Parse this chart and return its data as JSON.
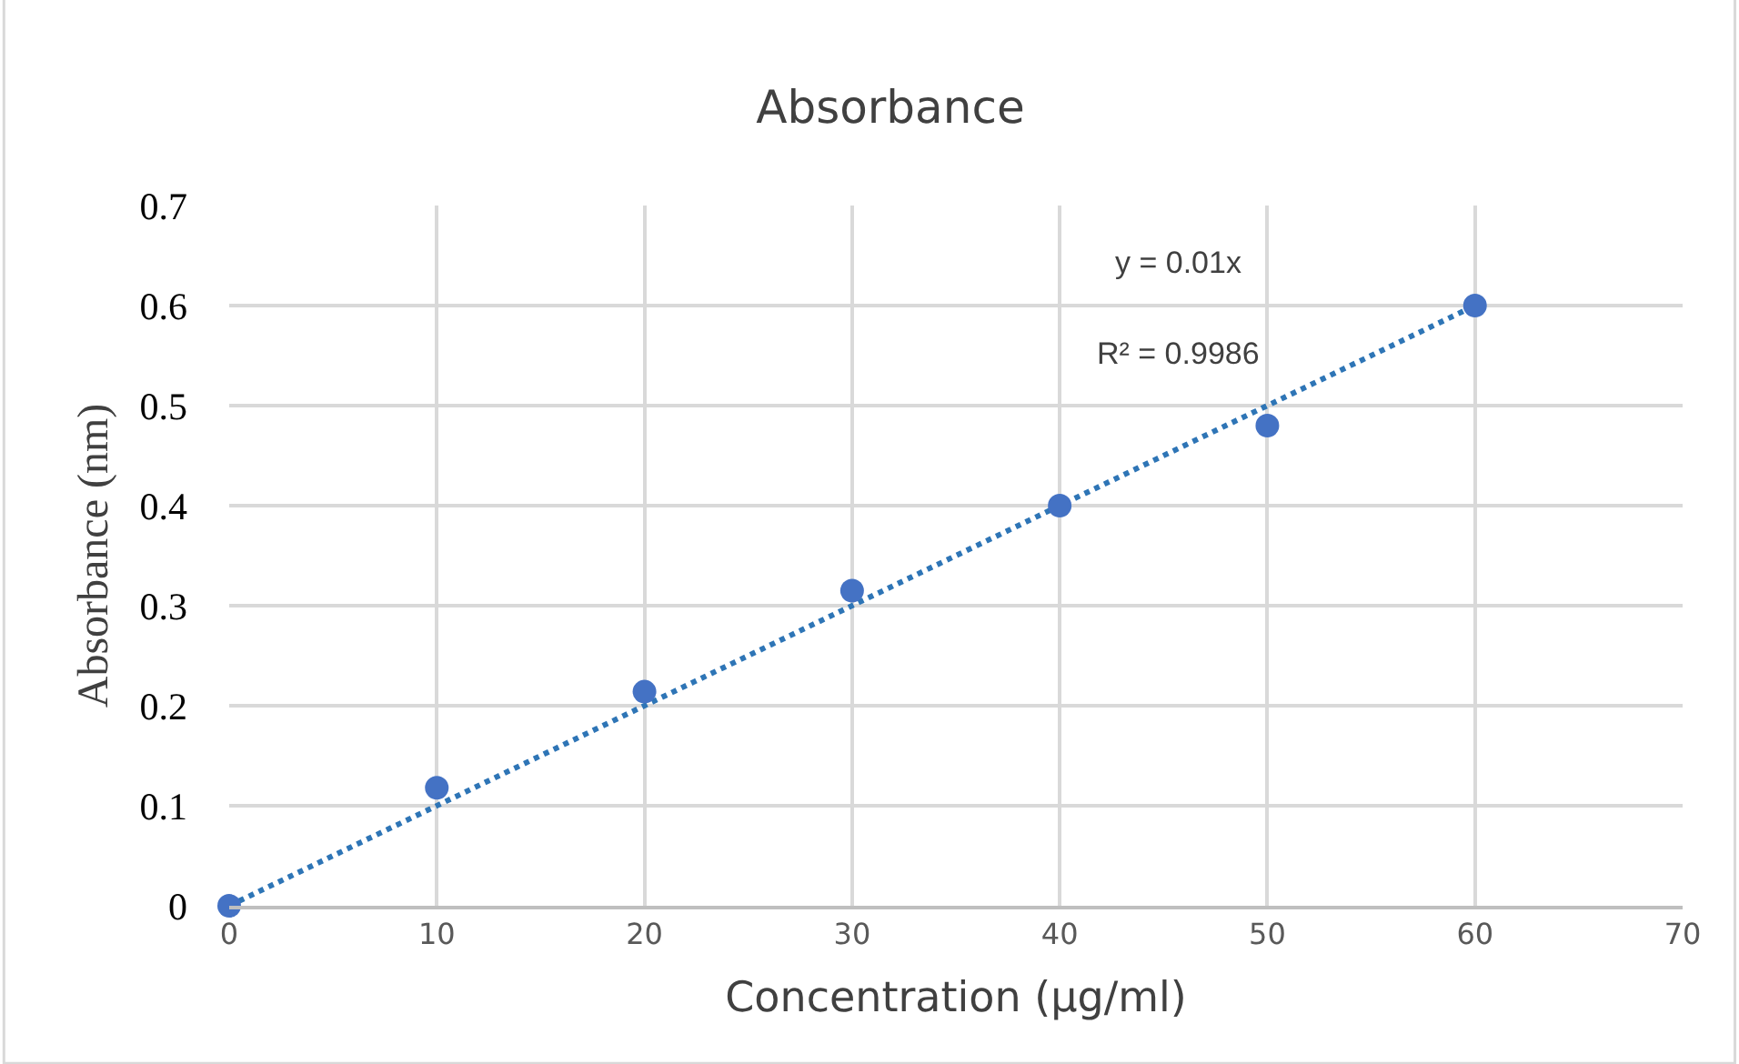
{
  "chart_data": {
    "type": "scatter",
    "title": "Absorbance",
    "xlabel": "Concentration (μg/ml)",
    "ylabel": "Absorbance (nm)",
    "x": [
      0,
      10,
      20,
      30,
      40,
      50,
      60
    ],
    "series": [
      {
        "type": "scatter",
        "color": "#4472c4",
        "values": [
          0,
          0.118,
          0.214,
          0.315,
          0.4,
          0.48,
          0.6
        ]
      },
      {
        "type": "line",
        "x": [
          0,
          60
        ],
        "values": [
          0,
          0.6
        ],
        "color": "#2e75b6",
        "line_style": "dotted",
        "marker": "none"
      }
    ],
    "xlim": [
      0,
      70
    ],
    "xticks": [
      0,
      10,
      20,
      30,
      40,
      50,
      60,
      70
    ],
    "ylim": [
      0,
      0.7
    ],
    "yticks": [
      0,
      0.1,
      0.2,
      0.3,
      0.4,
      0.5,
      0.6,
      0.7
    ],
    "grid": true,
    "marker": "circle",
    "annotations": [
      "y = 0.01x",
      "R² = 0.9986"
    ]
  }
}
